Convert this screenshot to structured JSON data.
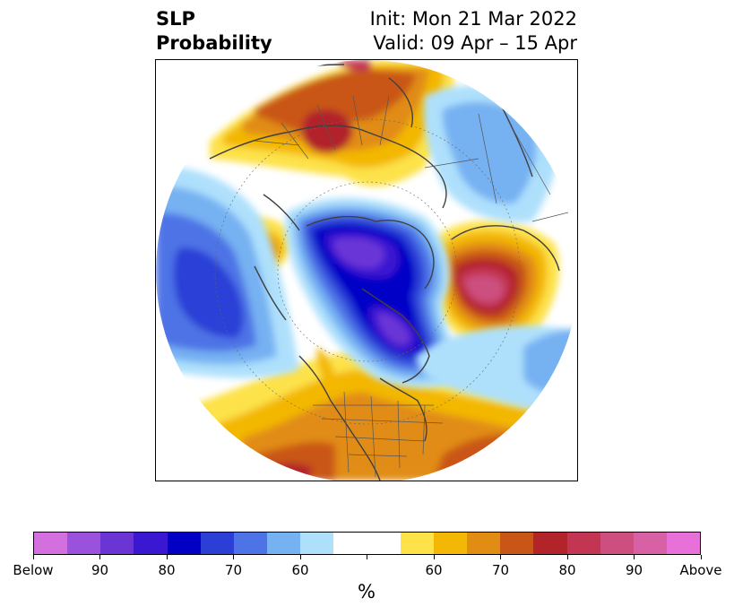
{
  "header": {
    "variable_line1": "SLP",
    "variable_line2": "Probability",
    "init_line": "Init: Mon 21 Mar 2022",
    "valid_line": "Valid: 09 Apr – 15 Apr"
  },
  "colorbar": {
    "unit": "%",
    "colors": [
      "#d46fe0",
      "#9a52dd",
      "#6b35d6",
      "#3a17d0",
      "#0300c6",
      "#2b3fd6",
      "#4d73e6",
      "#76b1f2",
      "#aee0fc",
      "#ffffff",
      "#ffffff",
      "#fde249",
      "#f3b705",
      "#e18c13",
      "#c95617",
      "#b2232a",
      "#c23553",
      "#cc4f7f",
      "#d861a6",
      "#e770d9"
    ],
    "tick_labels": [
      "Below",
      "90",
      "80",
      "70",
      "60",
      "",
      "60",
      "70",
      "80",
      "90",
      "Above"
    ]
  }
}
